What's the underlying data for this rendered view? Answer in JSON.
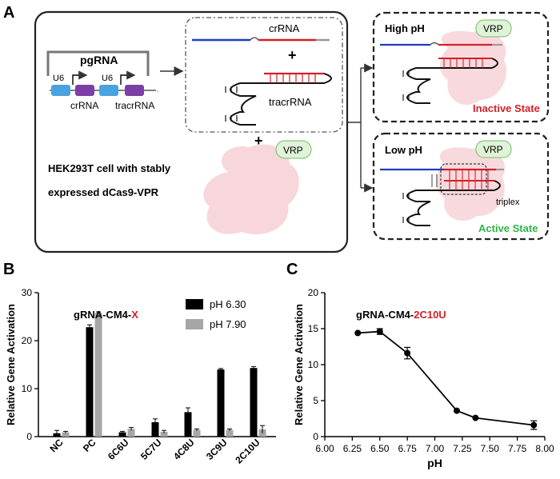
{
  "panel_a": {
    "label": "A",
    "pgrna_title": "pgRNA",
    "u6_label_1": "U6",
    "u6_label_2": "U6",
    "crrna_label": "crRNA",
    "tracrrna_label": "tracrRNA",
    "crrna_top_label": "crRNA",
    "plus_1": "+",
    "tracrrna_mid_label": "tracrRNA",
    "plus_2": "+",
    "vrp_1": "VRP",
    "cell_line_1": "HEK293T cell with stably",
    "cell_line_2": "expressed dCas9-VPR",
    "high_ph_title": "High pH",
    "vrp_2": "VRP",
    "inactive_state": "Inactive State",
    "low_ph_title": "Low pH",
    "vrp_3": "VRP",
    "triplex_label": "triplex",
    "active_state": "Active State",
    "colors": {
      "blue_strand": "#1f3fbf",
      "red_strand": "#d42027",
      "promoter": "#4aa3e0",
      "gene": "#7b3fa6",
      "protein_fill": "#f7d3d8",
      "vrp_fill": "#dff3d8",
      "inactive": "#d42027",
      "active": "#2fb34a"
    }
  },
  "panel_b": {
    "label": "B",
    "chart_data": {
      "type": "bar",
      "title_prefix": "gRNA-CM4-",
      "title_suffix": "X",
      "title_suffix_color": "#d42027",
      "ylabel": "Relative Gene Activation",
      "xlabel": "",
      "ylim": [
        0,
        30
      ],
      "yticks": [
        "0",
        "10",
        "20",
        "30"
      ],
      "categories": [
        "NC",
        "PC",
        "6C6U",
        "5C7U",
        "4C8U",
        "3C9U",
        "2C10U"
      ],
      "series": [
        {
          "name": "pH 6.30",
          "color": "#000000",
          "values": [
            0.7,
            22.8,
            0.9,
            3.0,
            5.1,
            14.0,
            14.3
          ],
          "errors": [
            0.6,
            0.5,
            0.2,
            0.7,
            0.9,
            0.2,
            0.3
          ]
        },
        {
          "name": "pH 7.90",
          "color": "#a6a6a6",
          "values": [
            0.9,
            25.8,
            1.6,
            1.0,
            1.4,
            1.4,
            1.5
          ],
          "errors": [
            0.2,
            0.2,
            0.3,
            0.3,
            0.2,
            0.2,
            0.8
          ]
        }
      ],
      "legend": [
        "pH 6.30",
        "pH 7.90"
      ]
    }
  },
  "panel_c": {
    "label": "C",
    "chart_data": {
      "type": "line",
      "title_prefix": "gRNA-CM4-",
      "title_suffix": "2C10U",
      "title_suffix_color": "#d42027",
      "xlabel": "pH",
      "ylabel": "Relative Gene Activation",
      "xlim": [
        6.0,
        8.0
      ],
      "ylim": [
        0,
        20
      ],
      "xticks": [
        "6.00",
        "6.25",
        "6.50",
        "6.75",
        "7.00",
        "7.25",
        "7.50",
        "7.75",
        "8.00"
      ],
      "yticks": [
        "0",
        "5",
        "10",
        "15",
        "20"
      ],
      "x": [
        6.3,
        6.5,
        6.75,
        7.2,
        7.37,
        7.9
      ],
      "y": [
        14.4,
        14.6,
        11.6,
        3.6,
        2.6,
        1.6
      ],
      "errors": [
        0.0,
        0.4,
        0.8,
        0.0,
        0.0,
        0.6
      ]
    }
  }
}
